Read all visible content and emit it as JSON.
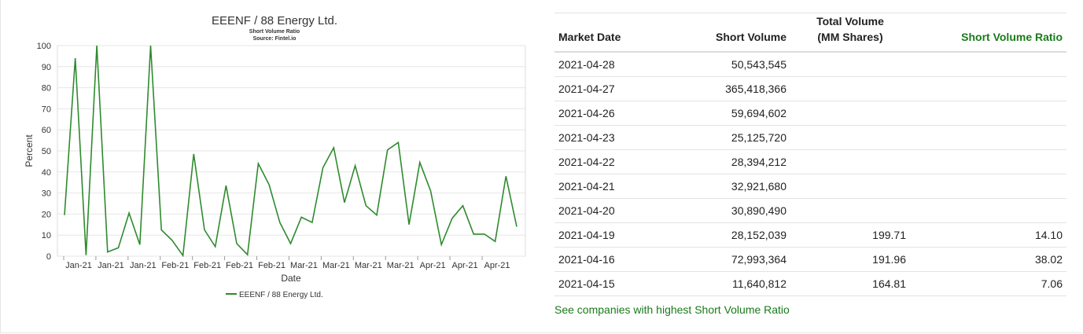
{
  "colors": {
    "series": "#2e8b2e",
    "accent": "#1a7a1a",
    "grid": "#e6e6e6"
  },
  "chart_data": {
    "type": "line",
    "title": "EEENF / 88 Energy Ltd.",
    "subtitle1": "Short Volume Ratio",
    "subtitle2": "Source: Fintel.io",
    "xlabel": "Date",
    "ylabel": "Percent",
    "ylim": [
      0,
      100
    ],
    "yticks": [
      0,
      10,
      20,
      30,
      40,
      50,
      60,
      70,
      80,
      90,
      100
    ],
    "xtick_labels": [
      "Jan-21",
      "Jan-21",
      "Jan-21",
      "Feb-21",
      "Feb-21",
      "Feb-21",
      "Feb-21",
      "Mar-21",
      "Mar-21",
      "Mar-21",
      "Mar-21",
      "Apr-21",
      "Apr-21",
      "Apr-21"
    ],
    "grid": true,
    "legend_position": "bottom-center",
    "series": [
      {
        "name": "EEENF / 88 Energy Ltd.",
        "values": [
          19.5,
          94,
          0.5,
          100,
          2,
          4,
          20.5,
          5.5,
          100,
          12.5,
          7.5,
          0.3,
          48.5,
          12.5,
          4.5,
          33.5,
          6,
          0.7,
          44,
          34,
          16,
          6,
          18.5,
          16,
          42,
          51.5,
          25.5,
          43,
          24,
          19.5,
          50.5,
          54,
          15,
          44.5,
          31,
          5.5,
          18,
          24,
          10.5,
          10.5,
          7,
          38,
          14
        ]
      }
    ]
  },
  "table": {
    "headers": {
      "market_date": "Market Date",
      "short_volume": "Short Volume",
      "total_volume_line1": "Total Volume",
      "total_volume_line2": "(MM Shares)",
      "short_volume_ratio": "Short Volume Ratio"
    },
    "rows": [
      {
        "date": "2021-04-28",
        "short": "50,543,545",
        "total": "",
        "ratio": ""
      },
      {
        "date": "2021-04-27",
        "short": "365,418,366",
        "total": "",
        "ratio": ""
      },
      {
        "date": "2021-04-26",
        "short": "59,694,602",
        "total": "",
        "ratio": ""
      },
      {
        "date": "2021-04-23",
        "short": "25,125,720",
        "total": "",
        "ratio": ""
      },
      {
        "date": "2021-04-22",
        "short": "28,394,212",
        "total": "",
        "ratio": ""
      },
      {
        "date": "2021-04-21",
        "short": "32,921,680",
        "total": "",
        "ratio": ""
      },
      {
        "date": "2021-04-20",
        "short": "30,890,490",
        "total": "",
        "ratio": ""
      },
      {
        "date": "2021-04-19",
        "short": "28,152,039",
        "total": "199.71",
        "ratio": "14.10"
      },
      {
        "date": "2021-04-16",
        "short": "72,993,364",
        "total": "191.96",
        "ratio": "38.02"
      },
      {
        "date": "2021-04-15",
        "short": "11,640,812",
        "total": "164.81",
        "ratio": "7.06"
      }
    ]
  },
  "link_text": "See companies with highest Short Volume Ratio"
}
